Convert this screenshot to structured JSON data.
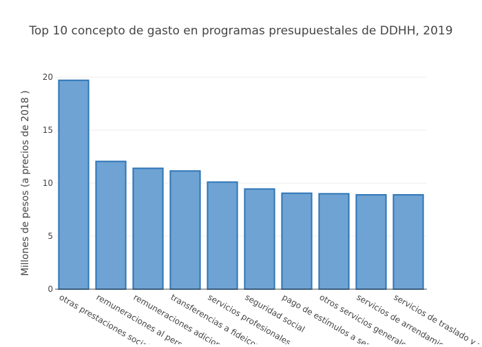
{
  "chart_data": {
    "type": "bar",
    "title": "Top 10 concepto de gasto en programas presupuestales de DDHH, 2019",
    "xlabel": "",
    "ylabel": "Millones de pesos (a precios de 2018 )",
    "ylim": [
      0,
      20
    ],
    "yticks": [
      0,
      5,
      10,
      15,
      20
    ],
    "grid": true,
    "legend": "none",
    "categories": [
      "otras prestaciones sociale",
      "remuneraciones al person",
      "remuneraciones adicional",
      "transferencias a fideicomi",
      "servicios profesionales, cie",
      "seguridad social",
      "pago de estímulos a servid",
      "otros servicios generales",
      "servicios de arrendamient",
      "servicios de traslado y v"
    ],
    "values": [
      19.7,
      12.05,
      11.4,
      11.15,
      10.1,
      9.45,
      9.05,
      9.0,
      8.9,
      8.9
    ],
    "colors": {
      "bar_fill": "#6fa3d3",
      "bar_stroke": "#2e75b6",
      "axis": "#444444",
      "grid": "#eeeeee",
      "title": "#444444",
      "text": "#444444"
    }
  }
}
